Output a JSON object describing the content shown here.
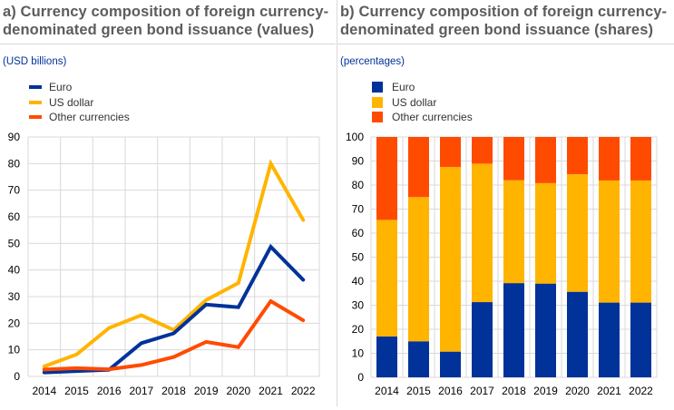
{
  "colors": {
    "euro": "#003299",
    "us_dollar": "#ffb400",
    "other": "#ff4b00",
    "grid": "#d9d9d9",
    "title": "#5c5c5c",
    "unit": "#003299"
  },
  "panel_a": {
    "title_line1": "a) Currency composition of foreign currency-",
    "title_line2": "denominated green bond issuance (values)",
    "unit": "(USD billions)",
    "legend": [
      "Euro",
      "US dollar",
      "Other currencies"
    ]
  },
  "panel_b": {
    "title_line1": "b) Currency composition of foreign currency-",
    "title_line2": "denominated green bond issuance (shares)",
    "unit": "(percentages)",
    "legend": [
      "Euro",
      "US dollar",
      "Other currencies"
    ]
  },
  "chart_data": [
    {
      "type": "line",
      "title": "a) Currency composition of foreign currency-denominated green bond issuance (values)",
      "ylabel": "(USD billions)",
      "xlabel": "",
      "categories": [
        "2014",
        "2015",
        "2016",
        "2017",
        "2018",
        "2019",
        "2020",
        "2021",
        "2022"
      ],
      "ylim": [
        0,
        90
      ],
      "yticks": [
        0,
        10,
        20,
        30,
        40,
        50,
        60,
        70,
        80,
        90
      ],
      "grid": true,
      "legend_position": "top-left",
      "series": [
        {
          "name": "Euro",
          "color": "#003299",
          "values": [
            1.5,
            2.0,
            2.5,
            12.5,
            16.2,
            27.0,
            26.0,
            48.7,
            36.3
          ]
        },
        {
          "name": "US dollar",
          "color": "#ffb400",
          "values": [
            3.8,
            8.3,
            18.2,
            23.0,
            17.5,
            28.7,
            35.1,
            80.0,
            58.8
          ]
        },
        {
          "name": "Other currencies",
          "color": "#ff4b00",
          "values": [
            2.6,
            3.1,
            2.7,
            4.3,
            7.3,
            13.0,
            11.0,
            28.3,
            21.1
          ]
        }
      ]
    },
    {
      "type": "bar",
      "stacked": true,
      "title": "b) Currency composition of foreign currency-denominated green bond issuance (shares)",
      "ylabel": "(percentages)",
      "xlabel": "",
      "categories": [
        "2014",
        "2015",
        "2016",
        "2017",
        "2018",
        "2019",
        "2020",
        "2021",
        "2022"
      ],
      "ylim": [
        0,
        100
      ],
      "yticks": [
        0,
        10,
        20,
        30,
        40,
        50,
        60,
        70,
        80,
        90,
        100
      ],
      "grid": true,
      "legend_position": "top-left",
      "series": [
        {
          "name": "Euro",
          "color": "#003299",
          "values": [
            17.0,
            15.0,
            10.7,
            31.3,
            39.2,
            39.0,
            35.6,
            31.1,
            31.1
          ]
        },
        {
          "name": "US dollar",
          "color": "#ffb400",
          "values": [
            48.5,
            60.0,
            76.8,
            57.6,
            42.8,
            41.8,
            48.9,
            50.8,
            50.8
          ]
        },
        {
          "name": "Other currencies",
          "color": "#ff4b00",
          "values": [
            34.5,
            25.0,
            12.5,
            11.1,
            18.0,
            19.2,
            15.5,
            18.1,
            18.1
          ]
        }
      ]
    }
  ]
}
